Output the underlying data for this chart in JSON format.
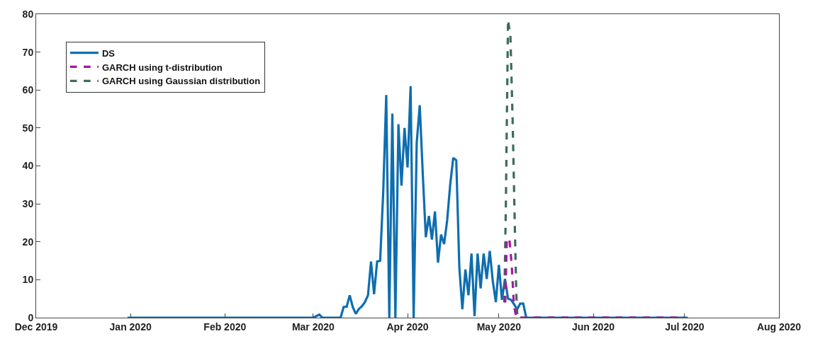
{
  "chart_data": {
    "type": "line",
    "xlim": [
      "2019-12-01",
      "2020-08-01"
    ],
    "xticks": [
      {
        "value": "2019-12-01",
        "label": "Dec 2019"
      },
      {
        "value": "2020-01-01",
        "label": "Jan 2020"
      },
      {
        "value": "2020-02-01",
        "label": "Feb 2020"
      },
      {
        "value": "2020-03-01",
        "label": "Mar 2020"
      },
      {
        "value": "2020-04-01",
        "label": "Apr 2020"
      },
      {
        "value": "2020-05-01",
        "label": "May 2020"
      },
      {
        "value": "2020-06-01",
        "label": "Jun 2020"
      },
      {
        "value": "2020-07-01",
        "label": "Jul 2020"
      },
      {
        "value": "2020-08-01",
        "label": "Aug 2020"
      }
    ],
    "ylim": [
      0,
      80
    ],
    "yticks": [
      0,
      10,
      20,
      30,
      40,
      50,
      60,
      70,
      80
    ],
    "legend": "top left",
    "marker": "none",
    "series": [
      {
        "name": "DS",
        "color": "#0e6eb0",
        "line_style": "solid",
        "x": [
          "2019-12-31",
          "2020-03-01",
          "2020-03-03",
          "2020-03-04",
          "2020-03-10",
          "2020-03-11",
          "2020-03-12",
          "2020-03-13",
          "2020-03-14",
          "2020-03-15",
          "2020-03-16",
          "2020-03-17",
          "2020-03-18",
          "2020-03-19",
          "2020-03-20",
          "2020-03-21",
          "2020-03-22",
          "2020-03-23",
          "2020-03-24",
          "2020-03-25",
          "2020-03-26",
          "2020-03-27",
          "2020-03-28",
          "2020-03-29",
          "2020-03-30",
          "2020-03-31",
          "2020-04-01",
          "2020-04-02",
          "2020-04-03",
          "2020-04-04",
          "2020-04-05",
          "2020-04-06",
          "2020-04-07",
          "2020-04-08",
          "2020-04-09",
          "2020-04-10",
          "2020-04-11",
          "2020-04-12",
          "2020-04-13",
          "2020-04-14",
          "2020-04-15",
          "2020-04-16",
          "2020-04-17",
          "2020-04-18",
          "2020-04-19",
          "2020-04-20",
          "2020-04-21",
          "2020-04-22",
          "2020-04-23",
          "2020-04-24",
          "2020-04-25",
          "2020-04-26",
          "2020-04-27",
          "2020-04-28",
          "2020-04-29",
          "2020-04-30",
          "2020-05-01",
          "2020-05-02",
          "2020-05-03",
          "2020-05-04",
          "2020-05-05",
          "2020-05-06",
          "2020-05-07",
          "2020-05-08",
          "2020-05-09",
          "2020-05-10",
          "2020-07-02"
        ],
        "values": [
          0,
          0,
          0.8,
          0,
          0,
          2.8,
          2.9,
          5.9,
          2.8,
          1.0,
          2.3,
          3,
          4.1,
          5.9,
          14.8,
          6.2,
          14.8,
          15,
          33,
          58.7,
          0,
          53.8,
          0,
          51,
          34.8,
          50,
          39.6,
          61,
          0,
          46,
          56,
          37.8,
          21.2,
          26.8,
          20.6,
          28,
          14.5,
          21.9,
          19.4,
          25.6,
          35,
          42.1,
          41.5,
          13.3,
          2.2,
          12.7,
          5.9,
          16.9,
          0.4,
          16.9,
          7.7,
          16.9,
          10.2,
          17.6,
          9.6,
          4.1,
          13.9,
          4.7,
          10.2,
          5,
          4.7,
          3.5,
          2.2,
          3.7,
          3.7,
          0,
          0
        ]
      },
      {
        "name": "GARCH using t-distribution",
        "color": "#a3199f",
        "line_style": "dashed",
        "x": [
          "2020-05-03T02:00",
          "2020-05-03T14:00",
          "2020-05-04T10:00",
          "2020-05-05T05:00",
          "2020-05-05T12:00",
          "2020-05-05T22:00",
          "2020-05-06T17:00",
          "2020-07-01"
        ],
        "values": [
          4,
          20.1,
          21,
          13.9,
          9.6,
          3.5,
          0,
          0
        ]
      },
      {
        "name": "GARCH using Gaussian distribution",
        "color": "#3d6b5c",
        "line_style": "dashed",
        "x": [
          "2020-05-02T19:00",
          "2020-05-03T07:00",
          "2020-05-04T00:00",
          "2020-05-04T19:00",
          "2020-05-05T12:00",
          "2020-05-06T07:00",
          "2020-05-06T17:00",
          "2020-05-07T02:00",
          "2020-07-01"
        ],
        "values": [
          4,
          30,
          78.5,
          74,
          52.5,
          21.8,
          6.5,
          0,
          0
        ]
      }
    ]
  }
}
